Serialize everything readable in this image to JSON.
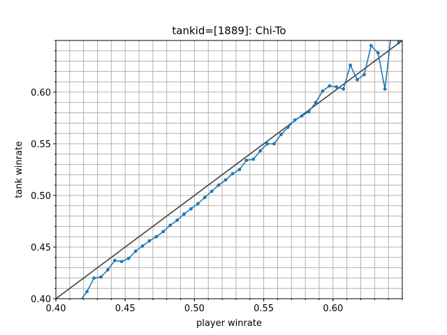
{
  "chart_data": {
    "type": "line",
    "title": "tankid=[1889]: Chi-To",
    "xlabel": "player winrate",
    "ylabel": "tank winrate",
    "xlim": [
      0.4,
      0.65
    ],
    "ylim": [
      0.4,
      0.65
    ],
    "x_ticks": [
      "0.40",
      "0.45",
      "0.50",
      "0.55",
      "0.60"
    ],
    "y_ticks": [
      "0.40",
      "0.45",
      "0.50",
      "0.55",
      "0.60"
    ],
    "grid": true,
    "minor_grid_step": 0.01,
    "colors": {
      "series": "#1f77b4",
      "reference": "#404040",
      "grid": "#b0b0b0"
    },
    "reference_line": {
      "x": [
        0.4,
        0.65
      ],
      "y": [
        0.4,
        0.65
      ]
    },
    "series": [
      {
        "x": [
          0.4175,
          0.4225,
          0.4275,
          0.4325,
          0.4375,
          0.4425,
          0.4475,
          0.4525,
          0.4575,
          0.4625,
          0.4675,
          0.4725,
          0.4775,
          0.4825,
          0.4875,
          0.4925,
          0.4975,
          0.5025,
          0.5075,
          0.5125,
          0.5175,
          0.5225,
          0.5275,
          0.5325,
          0.5375,
          0.5425,
          0.5475,
          0.5525,
          0.5575,
          0.5625,
          0.5675,
          0.5725,
          0.5775,
          0.5825,
          0.5875,
          0.5925,
          0.5975,
          0.6025,
          0.6075,
          0.6125,
          0.6175,
          0.6225,
          0.6275,
          0.6325,
          0.6375,
          0.6425,
          0.6475
        ],
        "y": [
          0.398,
          0.407,
          0.42,
          0.421,
          0.428,
          0.437,
          0.436,
          0.439,
          0.446,
          0.451,
          0.456,
          0.46,
          0.465,
          0.471,
          0.476,
          0.482,
          0.487,
          0.492,
          0.498,
          0.504,
          0.51,
          0.515,
          0.521,
          0.525,
          0.534,
          0.535,
          0.543,
          0.55,
          0.55,
          0.559,
          0.566,
          0.573,
          0.577,
          0.581,
          0.59,
          0.601,
          0.606,
          0.605,
          0.603,
          0.626,
          0.612,
          0.617,
          0.645,
          0.638,
          0.603,
          0.662,
          0.648
        ]
      }
    ]
  }
}
